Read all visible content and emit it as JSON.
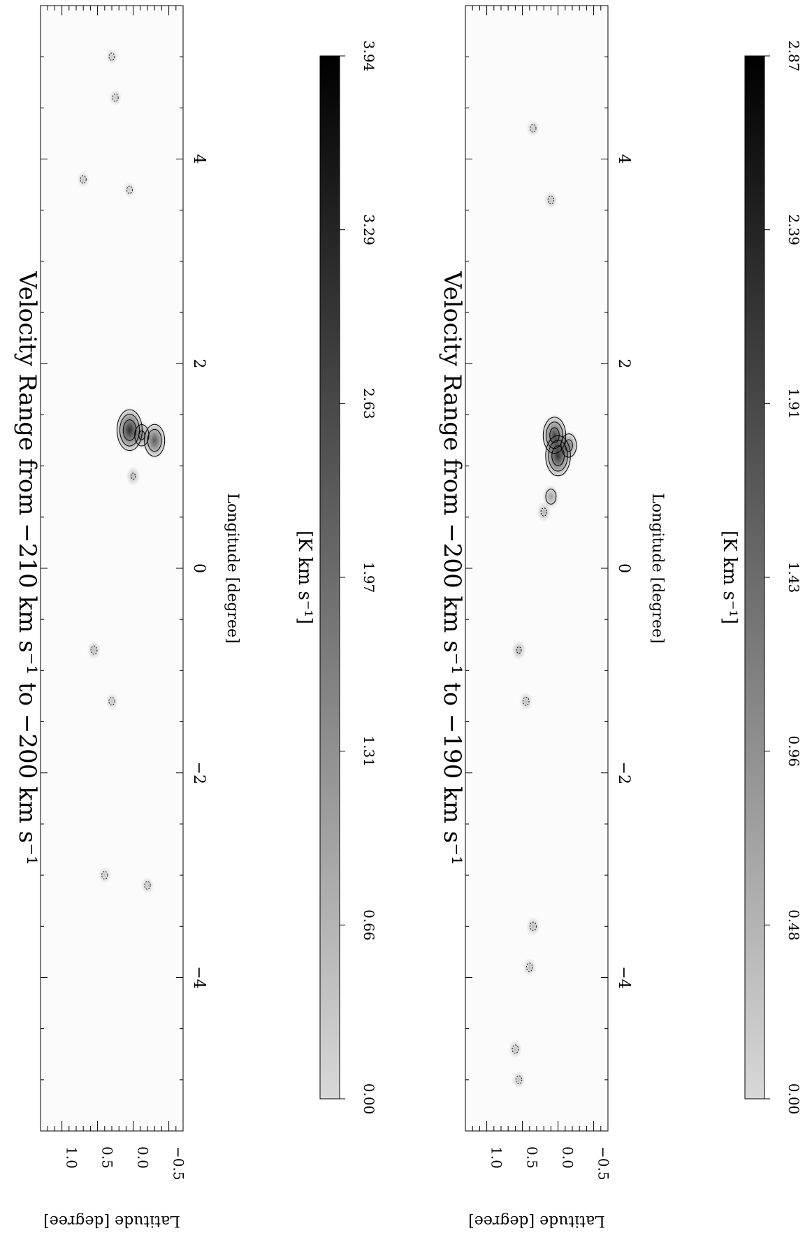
{
  "chart_data": [
    {
      "type": "heatmap",
      "title": "Velocity Range from  −210 km s⁻¹ to −200 km s⁻¹",
      "xlabel": "Longitude [degree]",
      "ylabel": "Latitude [degree]",
      "xlim": [
        5.5,
        -5.5
      ],
      "ylim": [
        -0.7,
        1.3
      ],
      "x_ticks": [
        "4",
        "2",
        "0",
        "−2",
        "−4"
      ],
      "x_tick_values": [
        4,
        2,
        0,
        -2,
        -4
      ],
      "y_ticks": [
        "1.0",
        "0.5",
        "0.0",
        "−0.5"
      ],
      "y_tick_values": [
        1.0,
        0.5,
        0.0,
        -0.5
      ],
      "colorbar": {
        "label": "[K km s⁻¹]",
        "ticks": [
          "0.00",
          "0.66",
          "1.31",
          "1.97",
          "2.63",
          "3.29",
          "3.94"
        ],
        "range": [
          0.0,
          3.94
        ]
      },
      "colormap": [
        "#d8d8d8",
        "#000000"
      ],
      "features": [
        {
          "l": 1.35,
          "b": 0.05,
          "peak": 3.5
        },
        {
          "l": 1.25,
          "b": -0.3,
          "peak": 2.6
        },
        {
          "l": 1.3,
          "b": -0.12,
          "peak": 1.6
        },
        {
          "l": 0.9,
          "b": 0.0,
          "peak": 0.6
        },
        {
          "l": -0.8,
          "b": 0.55,
          "peak": 0.5
        },
        {
          "l": -1.3,
          "b": 0.3,
          "peak": 0.35
        },
        {
          "l": -3.0,
          "b": 0.4,
          "peak": 0.35
        },
        {
          "l": -3.1,
          "b": -0.2,
          "peak": 0.35
        },
        {
          "l": 3.8,
          "b": 0.7,
          "peak": 0.3
        },
        {
          "l": 3.7,
          "b": 0.05,
          "peak": 0.25
        },
        {
          "l": 4.6,
          "b": 0.25,
          "peak": 0.3
        },
        {
          "l": 5.0,
          "b": 0.3,
          "peak": 0.25
        }
      ]
    },
    {
      "type": "heatmap",
      "title": "Velocity Range from  −200 km s⁻¹ to −190 km s⁻¹",
      "xlabel": "Longitude [degree]",
      "ylabel": "Latitude [degree]",
      "xlim": [
        5.5,
        -5.5
      ],
      "ylim": [
        -0.7,
        1.3
      ],
      "x_ticks": [
        "4",
        "2",
        "0",
        "−2",
        "−4"
      ],
      "x_tick_values": [
        4,
        2,
        0,
        -2,
        -4
      ],
      "y_ticks": [
        "1.0",
        "0.5",
        "0.0",
        "−0.5"
      ],
      "y_tick_values": [
        1.0,
        0.5,
        0.0,
        -0.5
      ],
      "colorbar": {
        "label": "[K km s⁻¹]",
        "ticks": [
          "0.00",
          "0.48",
          "0.96",
          "1.43",
          "1.91",
          "2.39",
          "2.87"
        ],
        "range": [
          0.0,
          2.87
        ]
      },
      "colormap": [
        "#d8d8d8",
        "#000000"
      ],
      "features": [
        {
          "l": 1.1,
          "b": 0.0,
          "peak": 2.5
        },
        {
          "l": 1.3,
          "b": 0.05,
          "peak": 2.2
        },
        {
          "l": 1.2,
          "b": -0.15,
          "peak": 1.3
        },
        {
          "l": 0.7,
          "b": 0.1,
          "peak": 0.8
        },
        {
          "l": 0.55,
          "b": 0.2,
          "peak": 0.5
        },
        {
          "l": -0.8,
          "b": 0.55,
          "peak": 0.45
        },
        {
          "l": -1.3,
          "b": 0.45,
          "peak": 0.35
        },
        {
          "l": -3.5,
          "b": 0.35,
          "peak": 0.4
        },
        {
          "l": -3.9,
          "b": 0.4,
          "peak": 0.35
        },
        {
          "l": -4.7,
          "b": 0.6,
          "peak": 0.35
        },
        {
          "l": -5.0,
          "b": 0.55,
          "peak": 0.3
        },
        {
          "l": 3.6,
          "b": 0.1,
          "peak": 0.3
        },
        {
          "l": 4.3,
          "b": 0.35,
          "peak": 0.25
        }
      ]
    }
  ]
}
